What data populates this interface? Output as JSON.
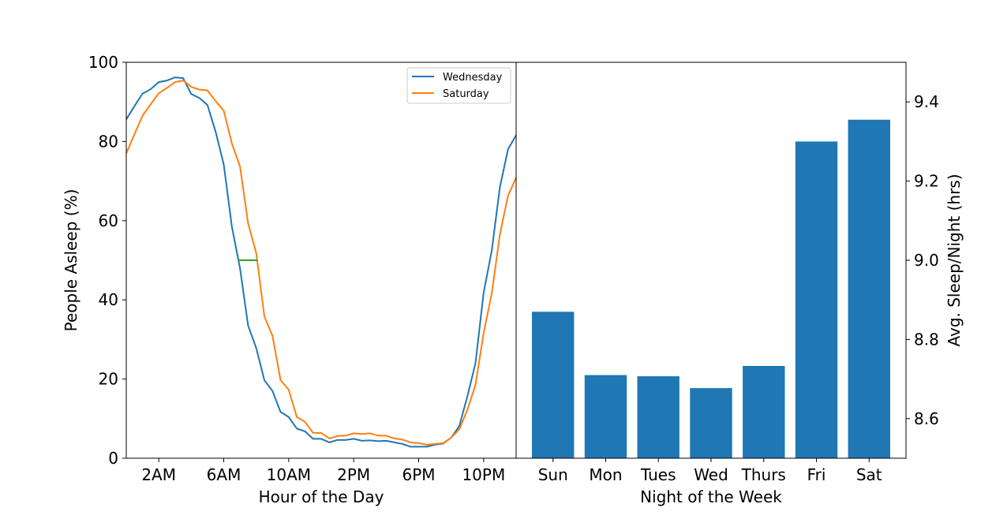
{
  "colors": {
    "wednesday": "#1f77b4",
    "saturday": "#ff7f0e",
    "marker": "#2ca02c",
    "bars": "#1f77b4"
  },
  "chart_data": [
    {
      "type": "line",
      "xlabel": "Hour of the Day",
      "ylabel": "People Asleep (%)",
      "xlim": [
        0,
        24
      ],
      "ylim": [
        0,
        100
      ],
      "x_ticks": [
        {
          "value": 2,
          "label": "2AM"
        },
        {
          "value": 6,
          "label": "6AM"
        },
        {
          "value": 10,
          "label": "10AM"
        },
        {
          "value": 14,
          "label": "2PM"
        },
        {
          "value": 18,
          "label": "6PM"
        },
        {
          "value": 22,
          "label": "10PM"
        }
      ],
      "y_ticks": [
        0,
        20,
        40,
        60,
        80,
        100
      ],
      "legend_position": "top-right",
      "grid": false,
      "series": [
        {
          "name": "Wednesday",
          "x": [
            0,
            0.5,
            1,
            1.5,
            2,
            2.5,
            3,
            3.5,
            4,
            4.5,
            5,
            5.5,
            6,
            6.5,
            7,
            7.5,
            8,
            8.5,
            9,
            9.5,
            10,
            10.5,
            11,
            11.5,
            12,
            12.5,
            13,
            13.5,
            14,
            14.5,
            15,
            15.5,
            16,
            16.5,
            17,
            17.5,
            18,
            18.5,
            19,
            19.5,
            20,
            20.5,
            21,
            21.5,
            22,
            22.5,
            23,
            23.5,
            24
          ],
          "values": [
            85.6,
            88.9,
            92.1,
            93.2,
            95.0,
            95.4,
            96.2,
            96.0,
            92.0,
            91.0,
            89.2,
            82.5,
            74.2,
            58.5,
            48.0,
            33.5,
            27.8,
            19.7,
            17.0,
            11.7,
            10.4,
            7.5,
            6.8,
            4.9,
            4.9,
            4.0,
            4.6,
            4.6,
            4.9,
            4.4,
            4.5,
            4.3,
            4.4,
            4.0,
            3.6,
            2.9,
            2.9,
            2.9,
            3.4,
            3.7,
            5.2,
            8.1,
            15.7,
            24.0,
            41.8,
            52.4,
            68.4,
            78.0,
            81.6
          ]
        },
        {
          "name": "Saturday",
          "x": [
            0,
            0.5,
            1,
            1.5,
            2,
            2.5,
            3,
            3.5,
            4,
            4.5,
            5,
            5.5,
            6,
            6.5,
            7,
            7.5,
            8,
            8.5,
            9,
            9.5,
            10,
            10.5,
            11,
            11.5,
            12,
            12.5,
            13,
            13.5,
            14,
            14.5,
            15,
            15.5,
            16,
            16.5,
            17,
            17.5,
            18,
            18.5,
            19,
            19.5,
            20,
            20.5,
            21,
            21.5,
            22,
            22.5,
            23,
            23.5,
            24
          ],
          "values": [
            77.0,
            81.8,
            86.5,
            89.4,
            92.2,
            93.5,
            95.0,
            95.4,
            93.8,
            93.1,
            92.9,
            90.2,
            87.8,
            79.5,
            73.7,
            59.3,
            51.8,
            35.8,
            30.9,
            19.7,
            17.3,
            10.4,
            9.2,
            6.4,
            6.4,
            5.0,
            5.6,
            5.7,
            6.3,
            6.1,
            6.3,
            5.7,
            5.7,
            5.0,
            4.7,
            4.0,
            3.8,
            3.4,
            3.6,
            3.8,
            5.2,
            7.3,
            12.3,
            18.5,
            31.6,
            41.6,
            56.5,
            66.3,
            70.9
          ]
        }
      ],
      "marker_segment": {
        "x": [
          6.9,
          8.1
        ],
        "y": 50
      }
    },
    {
      "type": "bar",
      "xlabel": "Night of the Week",
      "ylabel": "Avg. Sleep/Night (hrs)",
      "ylim": [
        8.5,
        9.5
      ],
      "y_ticks": [
        8.6,
        8.8,
        9.0,
        9.2,
        9.4
      ],
      "y_tick_labels": [
        "8.6",
        "8.8",
        "9.0",
        "9.2",
        "9.4"
      ],
      "categories": [
        "Sun",
        "Mon",
        "Tues",
        "Wed",
        "Thurs",
        "Fri",
        "Sat"
      ],
      "values": [
        8.87,
        8.71,
        8.707,
        8.677,
        8.733,
        9.3,
        9.355
      ]
    }
  ]
}
